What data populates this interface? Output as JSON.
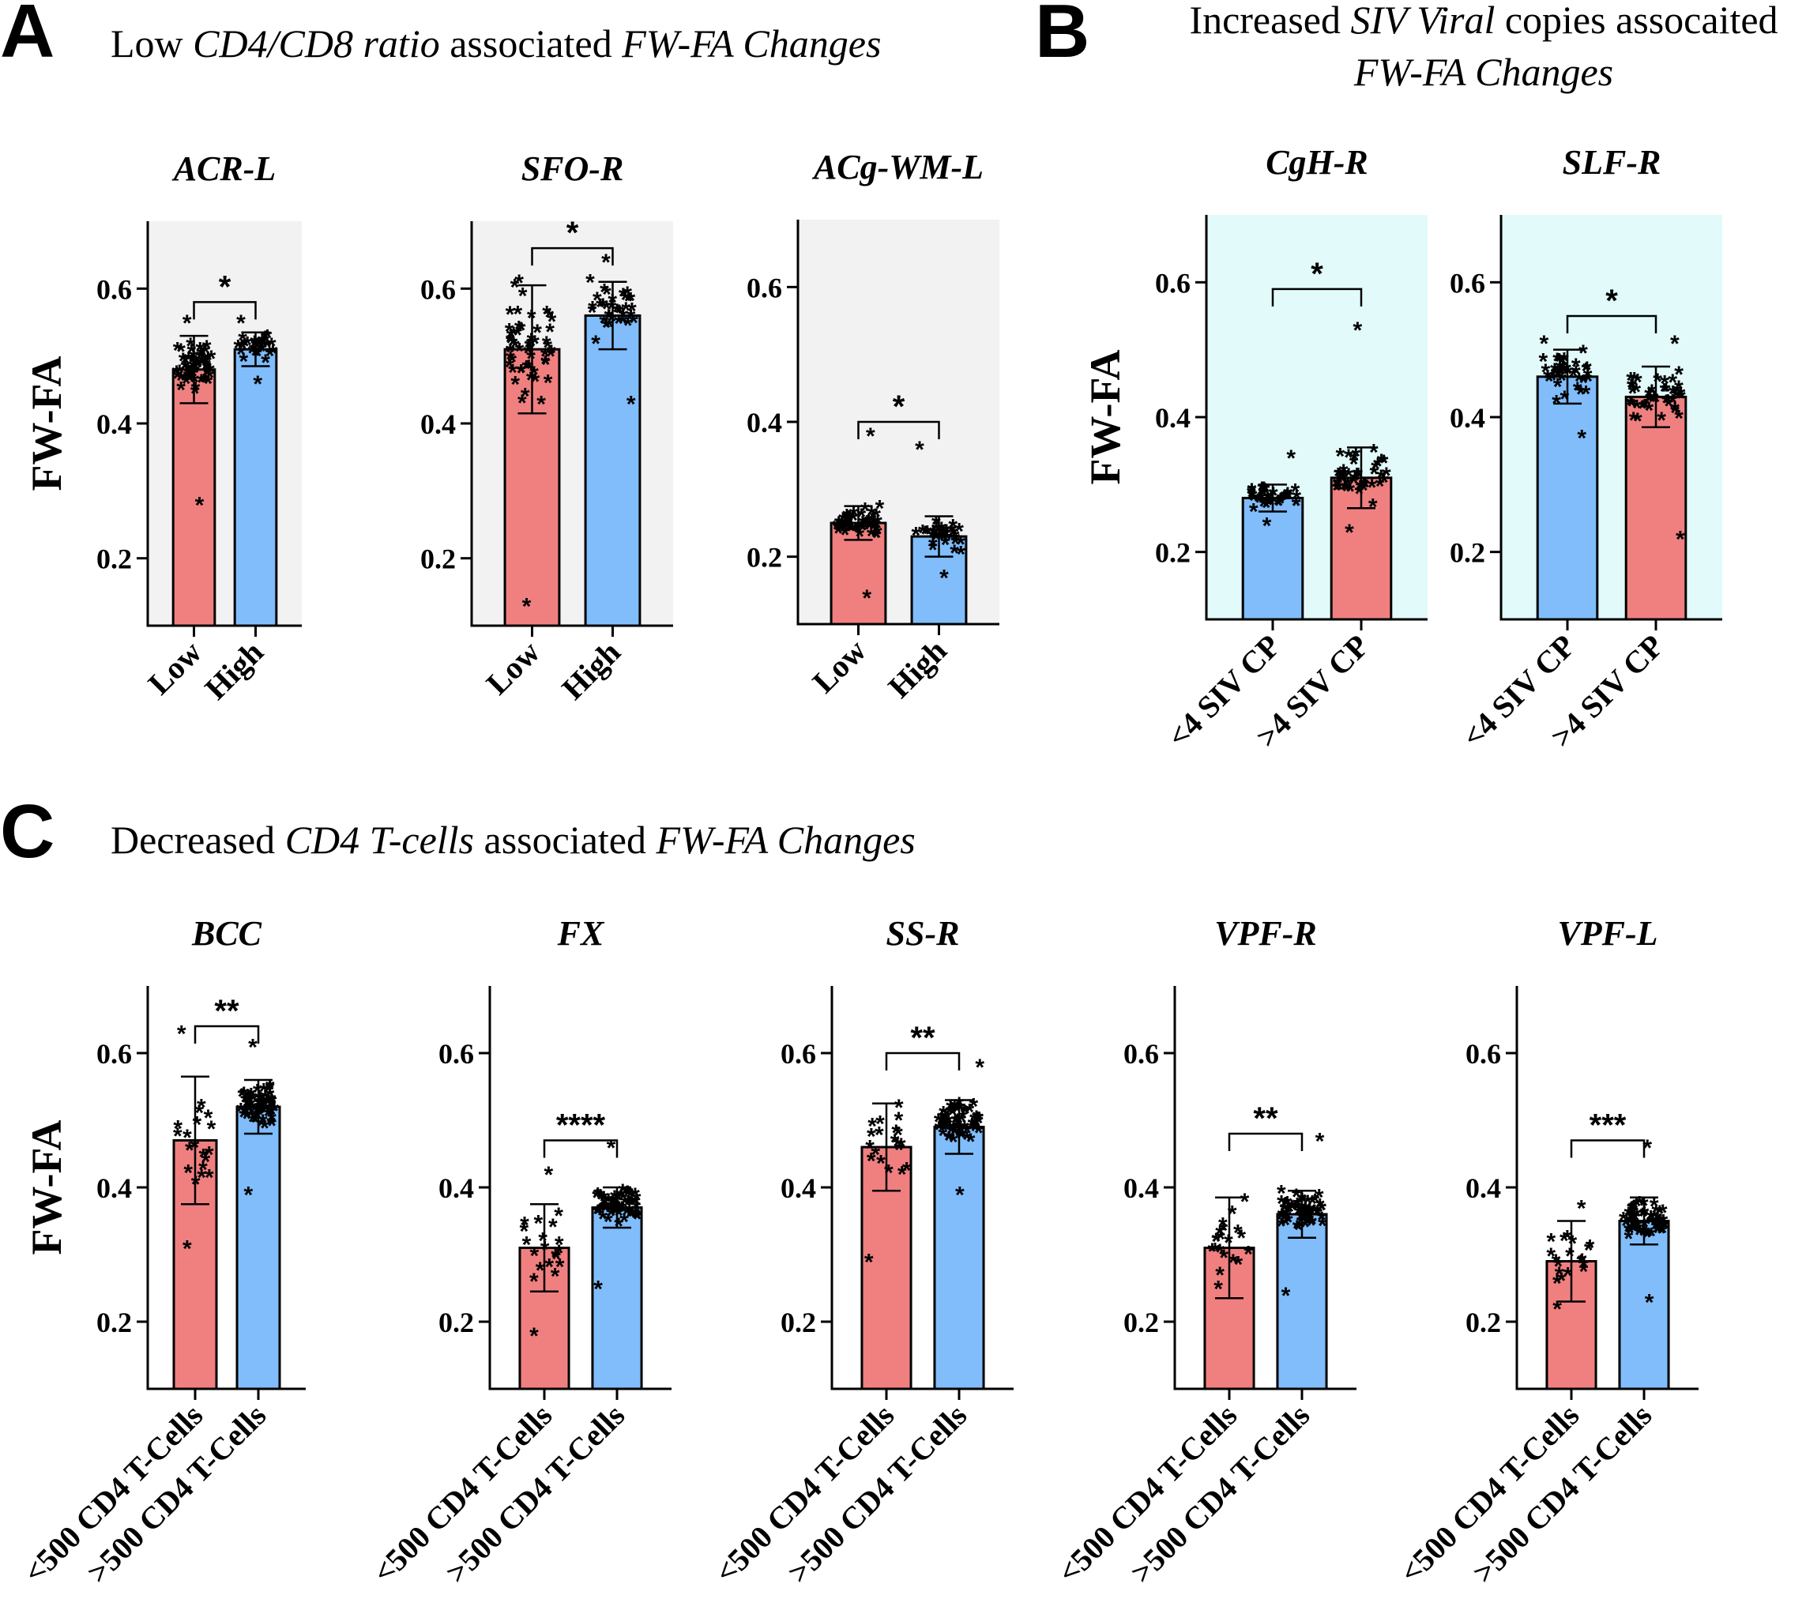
{
  "figure": {
    "colors": {
      "red": "#f08080",
      "blue": "#80bdfa",
      "gray_bg": "#f2f2f2",
      "cyan_bg": "#e2fafa",
      "ink": "#000000"
    },
    "sections": [
      {
        "letter": "A",
        "title": [
          {
            "text": "Low ",
            "italic": false
          },
          {
            "text": "CD4/CD8 ratio",
            "italic": true
          },
          {
            "text": " associated ",
            "italic": false
          },
          {
            "text": "FW-FA Changes",
            "italic": true
          }
        ]
      },
      {
        "letter": "B",
        "title_line1": [
          {
            "text": "Increased ",
            "italic": false
          },
          {
            "text": "SIV Viral",
            "italic": true
          },
          {
            "text": " copies assocaited",
            "italic": false
          }
        ],
        "title_line2": [
          {
            "text": "FW-FA Changes",
            "italic": true
          }
        ]
      },
      {
        "letter": "C",
        "title": [
          {
            "text": "Decreased ",
            "italic": false
          },
          {
            "text": "CD4 T-cells",
            "italic": true
          },
          {
            "text": " associated ",
            "italic": false
          },
          {
            "text": "FW-FA Changes",
            "italic": true
          }
        ]
      }
    ]
  },
  "chart_data": [
    {
      "type": "bar",
      "section": "A",
      "title": "ACR-L",
      "ylabel": "FW-FA",
      "ylim": [
        0.1,
        0.7
      ],
      "yticks": [
        0.2,
        0.4,
        0.6
      ],
      "background": "gray",
      "categories": [
        "Low",
        "High"
      ],
      "bar_colors": [
        "red",
        "blue"
      ],
      "values": [
        0.48,
        0.51
      ],
      "sd": [
        0.05,
        0.025
      ],
      "points_min": [
        0.28,
        0.46
      ],
      "points_max": [
        0.55,
        0.55
      ],
      "n": [
        60,
        30
      ],
      "significance": "*",
      "sig_y": 0.58
    },
    {
      "type": "bar",
      "section": "A",
      "title": "SFO-R",
      "ylabel": "",
      "ylim": [
        0.1,
        0.7
      ],
      "yticks": [
        0.2,
        0.4,
        0.6
      ],
      "background": "gray",
      "categories": [
        "Low",
        "High"
      ],
      "bar_colors": [
        "red",
        "blue"
      ],
      "values": [
        0.51,
        0.56
      ],
      "sd": [
        0.095,
        0.05
      ],
      "points_min": [
        0.13,
        0.43
      ],
      "points_max": [
        0.61,
        0.64
      ],
      "n": [
        55,
        35
      ],
      "significance": "*",
      "sig_y": 0.66
    },
    {
      "type": "bar",
      "section": "A",
      "title": "ACg-WM-L",
      "ylabel": "",
      "ylim": [
        0.1,
        0.7
      ],
      "yticks": [
        0.2,
        0.4,
        0.6
      ],
      "background": "gray",
      "categories": [
        "Low",
        "High"
      ],
      "bar_colors": [
        "red",
        "blue"
      ],
      "values": [
        0.25,
        0.23
      ],
      "sd": [
        0.025,
        0.03
      ],
      "points_min": [
        0.14,
        0.17
      ],
      "points_max": [
        0.38,
        0.36
      ],
      "n": [
        55,
        35
      ],
      "significance": "*",
      "sig_y": 0.4
    },
    {
      "type": "bar",
      "section": "B",
      "title": "CgH-R",
      "ylabel": "FW-FA",
      "ylim": [
        0.1,
        0.7
      ],
      "yticks": [
        0.2,
        0.4,
        0.6
      ],
      "background": "cyan",
      "categories": [
        "<4 SIV CP",
        ">4 SIV CP"
      ],
      "bar_colors": [
        "blue",
        "red"
      ],
      "values": [
        0.28,
        0.31
      ],
      "sd": [
        0.02,
        0.045
      ],
      "points_min": [
        0.24,
        0.23
      ],
      "points_max": [
        0.34,
        0.53
      ],
      "n": [
        40,
        45
      ],
      "significance": "*",
      "sig_y": 0.59
    },
    {
      "type": "bar",
      "section": "B",
      "title": "SLF-R",
      "ylabel": "",
      "ylim": [
        0.1,
        0.7
      ],
      "yticks": [
        0.2,
        0.4,
        0.6
      ],
      "background": "cyan",
      "categories": [
        "<4 SIV CP",
        ">4 SIV CP"
      ],
      "bar_colors": [
        "blue",
        "red"
      ],
      "values": [
        0.46,
        0.43
      ],
      "sd": [
        0.04,
        0.045
      ],
      "points_min": [
        0.37,
        0.22
      ],
      "points_max": [
        0.51,
        0.51
      ],
      "n": [
        40,
        45
      ],
      "significance": "*",
      "sig_y": 0.55
    },
    {
      "type": "bar",
      "section": "C",
      "title": "BCC",
      "ylabel": "FW-FA",
      "ylim": [
        0.1,
        0.7
      ],
      "yticks": [
        0.2,
        0.4,
        0.6
      ],
      "background": "none",
      "categories": [
        "<500 CD4 T-Cells",
        ">500 CD4 T-Cells"
      ],
      "bar_colors": [
        "red",
        "blue"
      ],
      "values": [
        0.47,
        0.52
      ],
      "sd": [
        0.095,
        0.04
      ],
      "points_min": [
        0.31,
        0.39
      ],
      "points_max": [
        0.63,
        0.61
      ],
      "n": [
        20,
        60
      ],
      "significance": "**",
      "sig_y": 0.64
    },
    {
      "type": "bar",
      "section": "C",
      "title": "FX",
      "ylabel": "",
      "ylim": [
        0.1,
        0.7
      ],
      "yticks": [
        0.2,
        0.4,
        0.6
      ],
      "background": "none",
      "categories": [
        "<500 CD4 T-Cells",
        ">500 CD4 T-Cells"
      ],
      "bar_colors": [
        "red",
        "blue"
      ],
      "values": [
        0.31,
        0.37
      ],
      "sd": [
        0.065,
        0.03
      ],
      "points_min": [
        0.18,
        0.25
      ],
      "points_max": [
        0.42,
        0.46
      ],
      "n": [
        20,
        60
      ],
      "significance": "****",
      "sig_y": 0.47
    },
    {
      "type": "bar",
      "section": "C",
      "title": "SS-R",
      "ylabel": "",
      "ylim": [
        0.1,
        0.7
      ],
      "yticks": [
        0.2,
        0.4,
        0.6
      ],
      "background": "none",
      "categories": [
        "<500 CD4 T-Cells",
        ">500 CD4 T-Cells"
      ],
      "bar_colors": [
        "red",
        "blue"
      ],
      "values": [
        0.46,
        0.49
      ],
      "sd": [
        0.065,
        0.04
      ],
      "points_min": [
        0.29,
        0.39
      ],
      "points_max": [
        0.52,
        0.58
      ],
      "n": [
        20,
        60
      ],
      "significance": "**",
      "sig_y": 0.6
    },
    {
      "type": "bar",
      "section": "C",
      "title": "VPF-R",
      "ylabel": "",
      "ylim": [
        0.1,
        0.7
      ],
      "yticks": [
        0.2,
        0.4,
        0.6
      ],
      "background": "none",
      "categories": [
        "<500 CD4 T-Cells",
        ">500 CD4 T-Cells"
      ],
      "bar_colors": [
        "red",
        "blue"
      ],
      "values": [
        0.31,
        0.36
      ],
      "sd": [
        0.075,
        0.035
      ],
      "points_min": [
        0.25,
        0.24
      ],
      "points_max": [
        0.38,
        0.47
      ],
      "n": [
        20,
        60
      ],
      "significance": "**",
      "sig_y": 0.48
    },
    {
      "type": "bar",
      "section": "C",
      "title": "VPF-L",
      "ylabel": "",
      "ylim": [
        0.1,
        0.7
      ],
      "yticks": [
        0.2,
        0.4,
        0.6
      ],
      "background": "none",
      "categories": [
        "<500 CD4 T-Cells",
        ">500 CD4 T-Cells"
      ],
      "bar_colors": [
        "red",
        "blue"
      ],
      "values": [
        0.29,
        0.35
      ],
      "sd": [
        0.06,
        0.035
      ],
      "points_min": [
        0.22,
        0.23
      ],
      "points_max": [
        0.37,
        0.46
      ],
      "n": [
        20,
        60
      ],
      "significance": "***",
      "sig_y": 0.47
    }
  ]
}
